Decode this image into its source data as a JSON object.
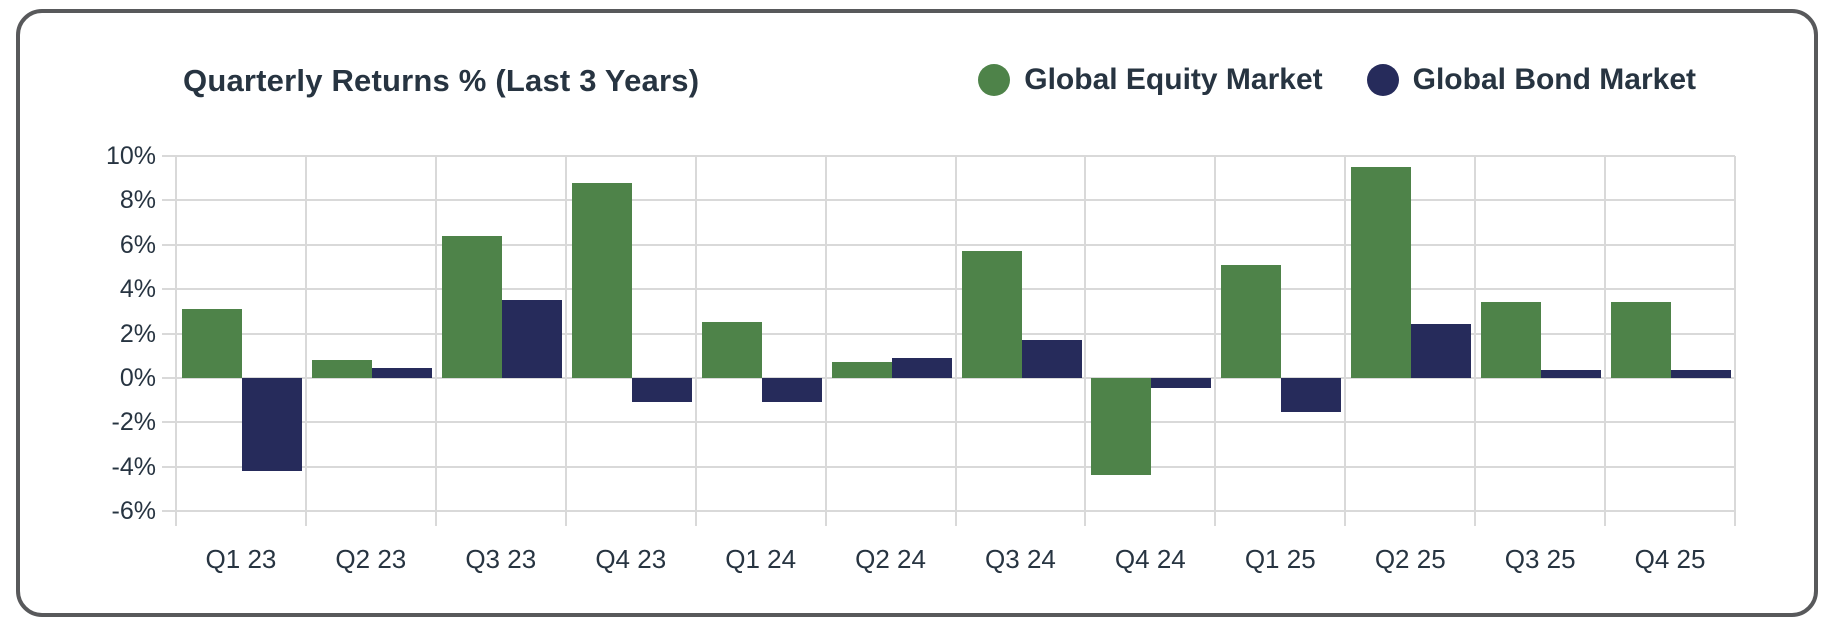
{
  "chart_data": {
    "type": "bar",
    "title": "Quarterly Returns % (Last 3 Years)",
    "categories": [
      "Q1 23",
      "Q2 23",
      "Q3 23",
      "Q4 23",
      "Q1 24",
      "Q2 24",
      "Q3 24",
      "Q4 24",
      "Q1 25",
      "Q2 25",
      "Q3 25",
      "Q4 25"
    ],
    "series": [
      {
        "name": "Global Equity Market",
        "color": "#4E8349",
        "values": [
          3.1,
          0.8,
          6.4,
          8.8,
          2.5,
          0.7,
          5.7,
          -4.4,
          5.1,
          9.5,
          3.4,
          3.4
        ]
      },
      {
        "name": "Global Bond Market",
        "color": "#262B5B",
        "values": [
          -4.2,
          0.45,
          3.5,
          -1.1,
          -1.1,
          0.9,
          1.7,
          -0.45,
          -1.55,
          2.45,
          0.35,
          0.35
        ]
      }
    ],
    "ylabel": "",
    "xlabel": "",
    "ylim": [
      -6,
      10
    ],
    "ytick_step": 2,
    "ytick_suffix": "%",
    "grid": true,
    "legend_position": "top-right"
  },
  "style": {
    "text_color": "#273441",
    "grid_color": "#d9d9d9",
    "card_border_color": "#58595b",
    "background": "#ffffff"
  }
}
